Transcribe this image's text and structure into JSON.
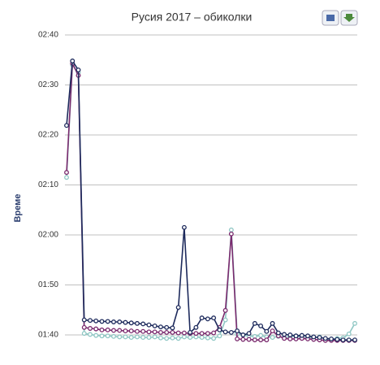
{
  "chart_data": {
    "type": "line",
    "title": "Русия 2017 – обиколки",
    "y_label": "Време",
    "ylim": [
      98,
      160
    ],
    "yticks": [
      {
        "value": 100,
        "label": "01:40"
      },
      {
        "value": 110,
        "label": "01:50"
      },
      {
        "value": 120,
        "label": "02:00"
      },
      {
        "value": 130,
        "label": "02:10"
      },
      {
        "value": 140,
        "label": "02:20"
      },
      {
        "value": 150,
        "label": "02:30"
      },
      {
        "value": 160,
        "label": "02:40"
      }
    ],
    "grid": true,
    "series": [
      {
        "color": "#1d2a5c",
        "values": [
          141.9,
          154.8,
          153,
          103,
          102.9,
          102.8,
          102.7,
          102.7,
          102.6,
          102.6,
          102.5,
          102.4,
          102.3,
          102.2,
          102,
          101.8,
          101.6,
          101.5,
          101.4,
          105.5,
          121.5,
          100.5,
          101.5,
          103.4,
          103.2,
          103.4,
          101,
          100.6,
          100.5,
          100.8,
          100,
          100.3,
          102.3,
          101.8,
          100.7,
          102.3,
          100.4,
          100.1,
          100,
          99.8,
          99.9,
          99.8,
          99.6,
          99.5,
          99.3,
          99.2,
          99.1,
          99,
          99,
          99
        ]
      },
      {
        "color": "#7a2a6e",
        "values": [
          132.5,
          154.3,
          151.9,
          101.5,
          101.3,
          101.2,
          101,
          101,
          100.9,
          100.9,
          100.8,
          100.8,
          100.7,
          100.7,
          100.6,
          100.6,
          100.5,
          100.5,
          100.5,
          100.4,
          100.4,
          100.3,
          100.3,
          100.3,
          100.3,
          100.4,
          101.5,
          104.9,
          120.2,
          99.2,
          99.1,
          99.1,
          99,
          99,
          99,
          100.8,
          99.8,
          99.3,
          99.2,
          99.2,
          99.3,
          99.2,
          99.1,
          99,
          98.9,
          98.9,
          98.9,
          98.9,
          98.9,
          98.9
        ]
      },
      {
        "color": "#8fc7c4",
        "values": [
          131.5,
          154,
          152.5,
          100.3,
          100.1,
          99.9,
          99.8,
          99.8,
          99.7,
          99.6,
          99.6,
          99.5,
          99.6,
          99.5,
          99.5,
          99.6,
          99.4,
          99.3,
          99.4,
          99.3,
          99.6,
          99.5,
          99.6,
          99.5,
          99.4,
          99.3,
          99.8,
          103,
          121,
          100.2,
          100,
          99.8,
          99.7,
          99.9,
          99.6,
          99.5,
          99.7,
          99.5,
          99.6,
          99.8,
          99.4,
          99.5,
          99.4,
          99.6,
          99.2,
          99.1,
          99.3,
          99.4,
          100.2,
          102.3
        ]
      }
    ]
  }
}
